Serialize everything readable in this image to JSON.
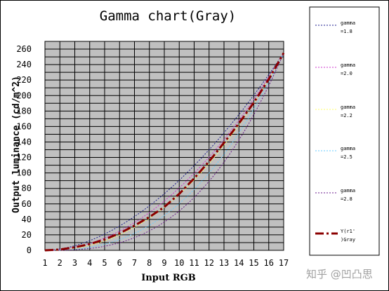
{
  "chart_data": {
    "type": "line",
    "title": "Gamma chart(Gray)",
    "xlabel": "Input RGB",
    "ylabel": "Output luminance (cd/m^2)",
    "xlim": [
      1,
      17
    ],
    "ylim": [
      0,
      270
    ],
    "x_ticks": [
      1,
      2,
      3,
      4,
      5,
      6,
      7,
      8,
      9,
      10,
      11,
      12,
      13,
      14,
      15,
      16,
      17
    ],
    "y_ticks": [
      0,
      20,
      40,
      60,
      80,
      100,
      120,
      140,
      160,
      180,
      200,
      220,
      240,
      260
    ],
    "grid": true,
    "legend_position": "right",
    "plot_background": "#c0c0c0",
    "series": [
      {
        "name": "gamma =1.8",
        "gamma": 1.8,
        "color": "#1a1a8c",
        "dash": "2,2",
        "width": 1
      },
      {
        "name": "gamma =2.0",
        "gamma": 2.0,
        "color": "#cc33cc",
        "dash": "2,2",
        "width": 1
      },
      {
        "name": "gamma =2.2",
        "gamma": 2.2,
        "color": "#ffff66",
        "dash": "2,2",
        "width": 1
      },
      {
        "name": "gamma =2.5",
        "gamma": 2.5,
        "color": "#66ccff",
        "dash": "2,2",
        "width": 1
      },
      {
        "name": "gamma =2.8",
        "gamma": 2.8,
        "color": "#6a1a8c",
        "dash": "2,2",
        "width": 1
      },
      {
        "name": "Y(r1')Gray",
        "color": "#8b0000",
        "dash": "12,4,3,4",
        "width": 3,
        "x": [
          1,
          2,
          3,
          4,
          5,
          6,
          7,
          8,
          9,
          10,
          11,
          12,
          13,
          14,
          15,
          16,
          17
        ],
        "y": [
          0,
          1,
          4,
          8,
          14,
          22,
          32,
          43,
          56,
          73,
          93,
          115,
          139,
          164,
          191,
          221,
          255
        ]
      }
    ]
  },
  "legend_entries": [
    {
      "line1": "gamma",
      "line2": "=1.8"
    },
    {
      "line1": "gamma",
      "line2": "=2.0"
    },
    {
      "line1": "gamma",
      "line2": "=2.2"
    },
    {
      "line1": "gamma",
      "line2": "=2.5"
    },
    {
      "line1": "gamma",
      "line2": "=2.8"
    },
    {
      "line1": "Y(r1'",
      "line2": ")Gray"
    }
  ],
  "watermark": "知乎 @凹凸思"
}
